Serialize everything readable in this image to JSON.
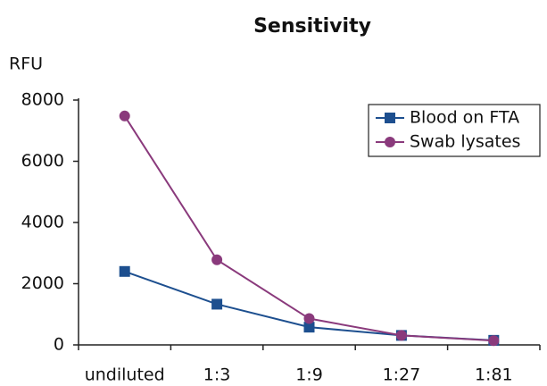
{
  "chart_data": {
    "type": "line",
    "title": "Sensitivity",
    "y_label": "RFU",
    "categories": [
      "undiluted",
      "1:3",
      "1:9",
      "1:27",
      "1:81"
    ],
    "series": [
      {
        "name": "Blood on FTA",
        "color": "#1d4f8f",
        "marker": "square",
        "values": [
          2400,
          1330,
          580,
          310,
          150
        ]
      },
      {
        "name": "Swab lysates",
        "color": "#8a3a7c",
        "marker": "circle",
        "values": [
          7480,
          2780,
          860,
          310,
          140
        ]
      }
    ],
    "ylim": [
      0,
      8000
    ],
    "yticks": [
      0,
      2000,
      4000,
      6000,
      8000
    ],
    "grid": false,
    "legend": "top-right"
  }
}
